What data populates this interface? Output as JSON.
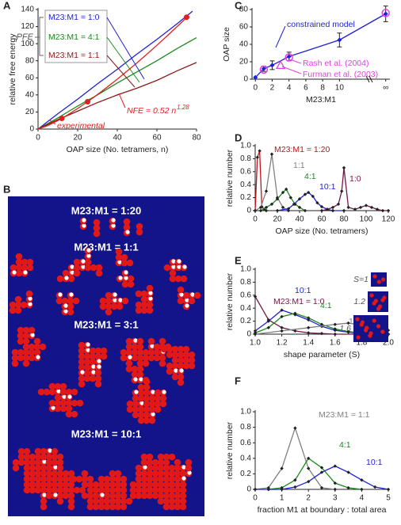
{
  "chart_data": [
    {
      "panel": "A",
      "type": "line",
      "xlabel": "OAP size (No. tetramers, n)",
      "ylabel": "relative free energy",
      "xlim": [
        0,
        80
      ],
      "ylim": [
        0,
        140
      ],
      "xticks": [
        0,
        20,
        40,
        60,
        80
      ],
      "yticks": [
        0,
        20,
        40,
        60,
        80,
        100,
        120,
        140
      ],
      "bracket_label": "PFE",
      "series": [
        {
          "name": "M23:M1 = 1:0",
          "color": "#1f1fd6",
          "x": [
            0,
            10,
            20,
            30,
            40,
            50,
            60,
            70,
            78
          ],
          "values": [
            0,
            18,
            35,
            53,
            70,
            88,
            105,
            123,
            138
          ]
        },
        {
          "name": "M23:M1 = 4:1",
          "color": "#1a8a1a",
          "x": [
            0,
            10,
            20,
            30,
            40,
            50,
            60,
            70,
            80
          ],
          "values": [
            0,
            13,
            27,
            40,
            54,
            67,
            80,
            94,
            107
          ]
        },
        {
          "name": "M23:M1 = 1:1",
          "color": "#8b1a1a",
          "x": [
            0,
            10,
            20,
            30,
            40,
            50,
            60,
            70,
            80
          ],
          "values": [
            0,
            11,
            21,
            31,
            40,
            48,
            57,
            68,
            78
          ]
        },
        {
          "name": "NFE = 0.52 n",
          "name_superscript": "1.28",
          "color": "#e02020",
          "x": [
            0,
            5,
            10,
            15,
            20,
            25,
            30,
            35,
            40,
            45,
            50,
            55,
            60,
            65,
            70,
            75
          ],
          "values": [
            0,
            4.1,
            9.9,
            16.6,
            24.1,
            32.0,
            40.4,
            49.3,
            58.4,
            68.0,
            77.7,
            87.8,
            98.1,
            108.7,
            119.6,
            130.6
          ]
        },
        {
          "name": "experimental",
          "color": "#e02020",
          "marker": "circle",
          "line": false,
          "x": [
            12,
            25,
            75
          ],
          "values": [
            12.5,
            32,
            131
          ]
        }
      ]
    },
    {
      "panel": "C",
      "type": "line",
      "xlabel": "M23:M1",
      "ylabel": "OAP size",
      "xlim": [
        -0.4,
        16
      ],
      "ylim": [
        0,
        80
      ],
      "xticks": [
        0,
        2,
        4,
        6,
        8,
        10,
        {
          "value": 15.5,
          "label": "∞"
        }
      ],
      "yticks": [
        0,
        20,
        40,
        60,
        80
      ],
      "series": [
        {
          "name": "constrained model",
          "color": "#1f1fd6",
          "marker": "diamond",
          "x": [
            0,
            1,
            2,
            4,
            10,
            15.5
          ],
          "values": [
            2,
            12,
            16,
            26,
            45,
            75
          ],
          "error": [
            null,
            3,
            5,
            5,
            8,
            9
          ]
        },
        {
          "name": "Rash et al. (2004)",
          "color": "#e040e0",
          "marker": "open-circle",
          "line": false,
          "x": [
            1,
            4,
            15.5
          ],
          "values": [
            11,
            25,
            76
          ]
        },
        {
          "name": "Furman et al. (2003)",
          "color": "#e040e0",
          "marker": "open-triangle",
          "line": false,
          "x": [
            3
          ],
          "values": [
            16
          ]
        }
      ]
    },
    {
      "panel": "D",
      "type": "line",
      "xlabel": "OAP size (No. tetramers)",
      "ylabel": "relative number",
      "xlim": [
        0,
        120
      ],
      "ylim": [
        0,
        1
      ],
      "xticks": [
        0,
        20,
        40,
        60,
        80,
        100,
        120
      ],
      "yticks": [
        0,
        0.2,
        0.4,
        0.6,
        0.8,
        {
          "value": 1,
          "label": "1.0"
        }
      ],
      "series": [
        {
          "name": "M23:M1 = 1:20",
          "color": "#c0141c",
          "marker": "dot",
          "x": [
            0,
            2,
            4,
            6,
            8,
            10
          ],
          "values": [
            0,
            0.82,
            0.92,
            0.06,
            0.02,
            0
          ]
        },
        {
          "name": "1:1",
          "color": "#808080",
          "marker": "dot",
          "x": [
            0,
            5,
            10,
            15,
            20,
            25,
            30
          ],
          "values": [
            0,
            0.05,
            0.3,
            0.87,
            0.2,
            0.05,
            0
          ]
        },
        {
          "name": "4:1",
          "color": "#1a8a1a",
          "marker": "dot",
          "x": [
            5,
            10,
            15,
            20,
            25,
            28,
            32,
            36,
            40,
            45
          ],
          "values": [
            0,
            0.05,
            0.1,
            0.18,
            0.28,
            0.33,
            0.2,
            0.1,
            0.05,
            0
          ]
        },
        {
          "name": "10:1",
          "color": "#1f1fd6",
          "marker": "dot",
          "x": [
            20,
            30,
            35,
            40,
            45,
            48,
            52,
            56,
            60,
            65,
            70,
            80
          ],
          "values": [
            0,
            0.03,
            0.1,
            0.18,
            0.25,
            0.28,
            0.22,
            0.12,
            0.06,
            0.02,
            0,
            0
          ]
        },
        {
          "name": "1:0",
          "color": "#7a1446",
          "marker": "dot",
          "x": [
            60,
            65,
            70,
            75,
            78,
            80,
            84,
            90,
            95,
            100,
            105,
            110,
            115,
            120
          ],
          "values": [
            0,
            0.02,
            0.05,
            0.1,
            0.3,
            0.66,
            0.05,
            0.02,
            0.05,
            0.08,
            0.05,
            0.02,
            0,
            0
          ]
        }
      ]
    },
    {
      "panel": "E",
      "type": "line",
      "xlabel": "shape parameter (S)",
      "ylabel": "relative number",
      "xlim": [
        1,
        2
      ],
      "ylim": [
        0,
        1
      ],
      "xticks": [
        {
          "value": 1,
          "label": "1.0"
        },
        1.2,
        1.4,
        1.6,
        1.8,
        {
          "value": 2,
          "label": "2.0"
        }
      ],
      "yticks": [
        0,
        0.2,
        0.4,
        0.6,
        0.8,
        {
          "value": 1,
          "label": "1.0"
        }
      ],
      "insets": [
        "S=1",
        "1.2",
        "1.6"
      ],
      "series": [
        {
          "name": "M23:M1 = 1:0",
          "color": "#7a1446",
          "marker": "dot",
          "x": [
            1.0,
            1.1,
            1.2,
            1.3,
            1.4,
            1.5,
            1.6,
            1.8,
            2.0
          ],
          "values": [
            0.58,
            0.22,
            0.1,
            0.05,
            0.02,
            0.01,
            0,
            0,
            0
          ]
        },
        {
          "name": "10:1",
          "color": "#1f1fd6",
          "marker": "dot",
          "x": [
            1.0,
            1.1,
            1.2,
            1.3,
            1.4,
            1.5,
            1.6,
            1.7,
            1.8,
            2.0
          ],
          "values": [
            0.05,
            0.2,
            0.37,
            0.3,
            0.22,
            0.12,
            0.06,
            0.03,
            0.01,
            0
          ]
        },
        {
          "name": "4:1",
          "color": "#1a8a1a",
          "marker": "dot",
          "x": [
            1.0,
            1.1,
            1.2,
            1.3,
            1.4,
            1.5,
            1.6,
            1.7,
            1.8,
            2.0
          ],
          "values": [
            0.02,
            0.1,
            0.27,
            0.32,
            0.25,
            0.15,
            0.08,
            0.04,
            0.02,
            0
          ]
        },
        {
          "name": "1:1",
          "color": "#808080",
          "marker": "dot",
          "x": [
            1.0,
            1.2,
            1.4,
            1.6,
            1.7,
            1.8,
            1.9,
            2.0
          ],
          "values": [
            0,
            0.05,
            0.1,
            0.15,
            0.17,
            0.14,
            0.08,
            0.06
          ]
        }
      ]
    },
    {
      "panel": "F",
      "type": "line",
      "xlabel": "fraction M1 at boundary : total area",
      "ylabel": "relative number",
      "xlim": [
        0,
        5
      ],
      "ylim": [
        0,
        1
      ],
      "xticks": [
        0,
        1,
        2,
        3,
        4,
        5
      ],
      "yticks": [
        0,
        0.2,
        0.4,
        0.6,
        0.8,
        {
          "value": 1,
          "label": "1.0"
        }
      ],
      "series": [
        {
          "name": "M23:M1 = 1:1",
          "color": "#808080",
          "marker": "dot",
          "x": [
            0,
            0.5,
            1,
            1.5,
            2,
            2.5,
            3
          ],
          "values": [
            0,
            0.02,
            0.27,
            0.79,
            0.27,
            0.02,
            0
          ]
        },
        {
          "name": "4:1",
          "color": "#1a8a1a",
          "marker": "dot",
          "x": [
            0.5,
            1,
            1.5,
            2,
            2.5,
            3,
            3.5,
            4
          ],
          "values": [
            0,
            0.02,
            0.12,
            0.4,
            0.28,
            0.08,
            0.02,
            0
          ]
        },
        {
          "name": "10:1",
          "color": "#1f1fd6",
          "marker": "dot",
          "x": [
            0,
            0.5,
            1,
            1.5,
            2,
            2.5,
            3,
            3.5,
            4,
            4.5,
            5
          ],
          "values": [
            0,
            0,
            0,
            0.03,
            0.1,
            0.22,
            0.3,
            0.22,
            0.12,
            0.03,
            0
          ]
        }
      ]
    }
  ],
  "panel_b": {
    "label": "B",
    "sections": [
      "M23:M1 = 1:20",
      "M23:M1 = 1:1",
      "M23:M1 = 3:1",
      "M23:M1 = 10:1"
    ]
  }
}
